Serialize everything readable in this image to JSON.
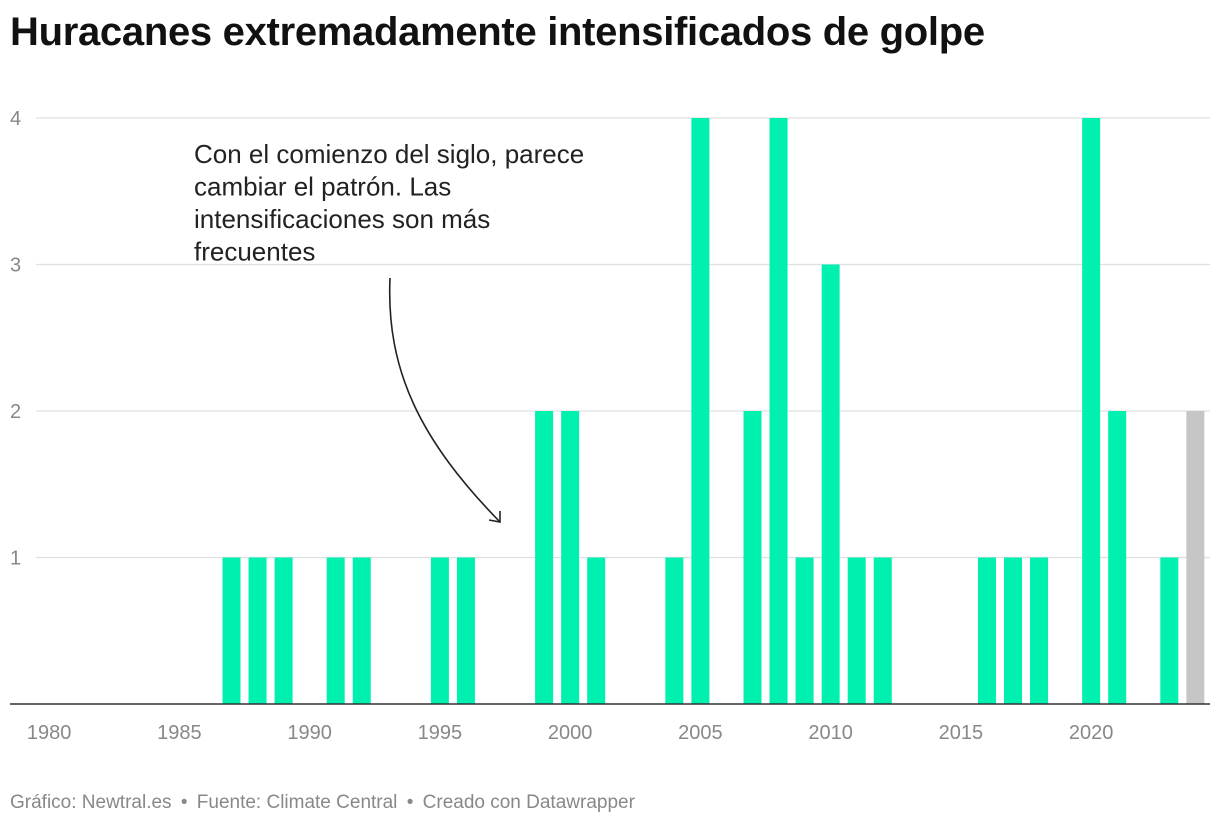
{
  "chart_data": {
    "type": "bar",
    "title": "Huracanes extremadamente intensificados de golpe",
    "categories": [
      1980,
      1981,
      1982,
      1983,
      1984,
      1985,
      1986,
      1987,
      1988,
      1989,
      1990,
      1991,
      1992,
      1993,
      1994,
      1995,
      1996,
      1997,
      1998,
      1999,
      2000,
      2001,
      2002,
      2003,
      2004,
      2005,
      2006,
      2007,
      2008,
      2009,
      2010,
      2011,
      2012,
      2013,
      2014,
      2015,
      2016,
      2017,
      2018,
      2019,
      2020,
      2021,
      2022,
      2023,
      2024
    ],
    "values": [
      0,
      0,
      0,
      0,
      0,
      0,
      0,
      1,
      1,
      1,
      0,
      1,
      1,
      0,
      0,
      1,
      1,
      0,
      0,
      2,
      2,
      1,
      0,
      0,
      1,
      4,
      0,
      2,
      4,
      1,
      3,
      1,
      1,
      0,
      0,
      0,
      1,
      1,
      1,
      0,
      4,
      2,
      0,
      1,
      2
    ],
    "highlight": {
      "category": 2024,
      "color": "#c6c6c6"
    },
    "bar_color": "#00f0b0",
    "ylim": [
      0,
      4
    ],
    "y_ticks": [
      1,
      2,
      3,
      4
    ],
    "x_ticks": [
      1980,
      1985,
      1990,
      1995,
      2000,
      2005,
      2010,
      2015,
      2020
    ],
    "grid": true,
    "annotation": {
      "lines": [
        "Con el comienzo del siglo, parece",
        "cambiar el patrón. Las",
        "intensificaciones son más",
        "frecuentes"
      ]
    }
  },
  "footer": {
    "grafico": "Gráfico: Newtral.es",
    "fuente": "Fuente: Climate Central",
    "creado": "Creado con Datawrapper",
    "separator": "•"
  },
  "colors": {
    "grid": "#e0e0e0",
    "axis": "#333333",
    "tick_text": "#888888",
    "arrow": "#222222"
  }
}
